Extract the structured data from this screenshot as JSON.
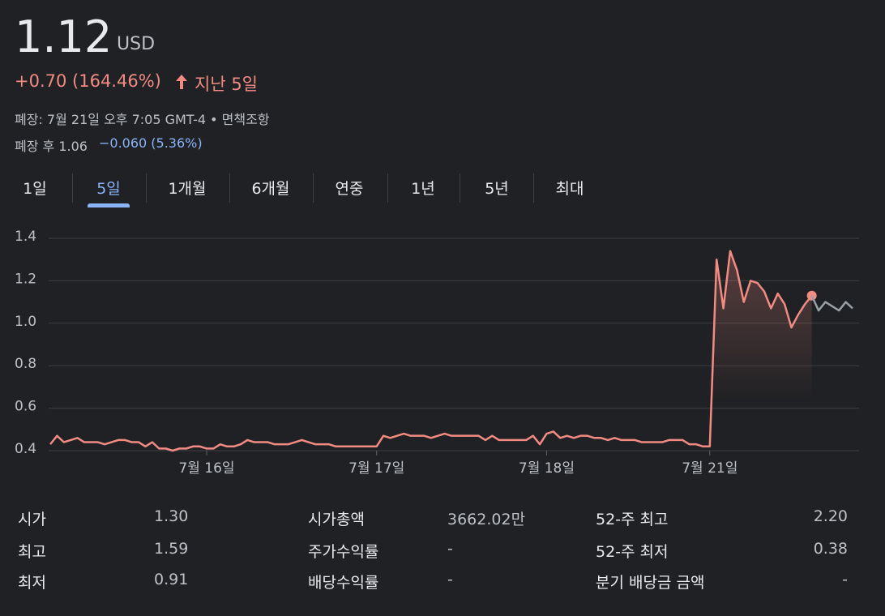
{
  "quote": {
    "price": "1.12",
    "currency": "USD",
    "change": "+0.70 (164.46%)",
    "period": "지난 5일",
    "close_note": "폐장: 7월 21일 오후 7:05 GMT-4 • 면책조항",
    "after_label": "폐장 후 1.06",
    "after_change": "−0.060 (5.36%)"
  },
  "tabs": [
    {
      "label": "1일",
      "selected": false
    },
    {
      "label": "5일",
      "selected": true
    },
    {
      "label": "1개월",
      "selected": false
    },
    {
      "label": "6개월",
      "selected": false
    },
    {
      "label": "연중",
      "selected": false
    },
    {
      "label": "1년",
      "selected": false
    },
    {
      "label": "5년",
      "selected": false
    },
    {
      "label": "최대",
      "selected": false
    }
  ],
  "chart_data": {
    "type": "line",
    "grid": true,
    "ylim": [
      0.4,
      1.4
    ],
    "yticks": [
      0.4,
      0.6,
      0.8,
      {
        "value": 1,
        "label": "1.0"
      },
      1.2,
      1.4
    ],
    "categories": [
      null,
      null,
      null,
      null,
      null,
      null,
      null,
      null,
      null,
      null,
      null,
      null,
      null,
      null,
      null,
      null,
      null,
      null,
      null,
      null,
      null,
      null,
      null,
      "7월 16일",
      null,
      null,
      null,
      null,
      null,
      null,
      null,
      null,
      null,
      null,
      null,
      null,
      null,
      null,
      null,
      null,
      null,
      null,
      null,
      null,
      null,
      null,
      null,
      null,
      "7월 17일",
      null,
      null,
      null,
      null,
      null,
      null,
      null,
      null,
      null,
      null,
      null,
      null,
      null,
      null,
      null,
      null,
      null,
      null,
      null,
      null,
      null,
      null,
      null,
      null,
      "7월 18일",
      null,
      null,
      null,
      null,
      null,
      null,
      null,
      null,
      null,
      null,
      null,
      null,
      null,
      null,
      null,
      null,
      null,
      null,
      null,
      null,
      null,
      null,
      null,
      "7월 21일",
      null,
      null,
      null,
      null,
      null,
      null,
      null,
      null,
      null,
      null,
      null,
      null,
      null,
      null,
      null,
      null,
      null,
      null,
      null,
      null,
      null
    ],
    "series": [
      {
        "color": "#f28b82",
        "values": [
          0.43,
          0.47,
          0.44,
          0.45,
          0.46,
          0.44,
          0.44,
          0.44,
          0.43,
          0.44,
          0.45,
          0.45,
          0.44,
          0.44,
          0.42,
          0.44,
          0.41,
          0.41,
          0.4,
          0.41,
          0.41,
          0.42,
          0.42,
          0.41,
          0.41,
          0.43,
          0.42,
          0.42,
          0.43,
          0.45,
          0.44,
          0.44,
          0.44,
          0.43,
          0.43,
          0.43,
          0.44,
          0.45,
          0.44,
          0.43,
          0.43,
          0.43,
          0.42,
          0.42,
          0.42,
          0.42,
          0.42,
          0.42,
          0.42,
          0.47,
          0.46,
          0.47,
          0.48,
          0.47,
          0.47,
          0.47,
          0.46,
          0.47,
          0.48,
          0.47,
          0.47,
          0.47,
          0.47,
          0.47,
          0.45,
          0.47,
          0.45,
          0.45,
          0.45,
          0.45,
          0.45,
          0.47,
          0.43,
          0.48,
          0.49,
          0.46,
          0.47,
          0.46,
          0.47,
          0.47,
          0.46,
          0.46,
          0.45,
          0.46,
          0.45,
          0.45,
          0.45,
          0.44,
          0.44,
          0.44,
          0.44,
          0.45,
          0.45,
          0.45,
          0.43,
          0.43,
          0.42,
          0.42,
          1.3,
          1.07,
          1.34,
          1.25,
          1.1,
          1.2,
          1.19,
          1.15,
          1.07,
          1.14,
          1.09,
          0.98,
          1.04,
          1.09,
          1.13,
          null,
          null,
          null,
          null,
          null,
          null
        ]
      },
      {
        "color": "#9aa0a6",
        "values": [
          null,
          null,
          null,
          null,
          null,
          null,
          null,
          null,
          null,
          null,
          null,
          null,
          null,
          null,
          null,
          null,
          null,
          null,
          null,
          null,
          null,
          null,
          null,
          null,
          null,
          null,
          null,
          null,
          null,
          null,
          null,
          null,
          null,
          null,
          null,
          null,
          null,
          null,
          null,
          null,
          null,
          null,
          null,
          null,
          null,
          null,
          null,
          null,
          null,
          null,
          null,
          null,
          null,
          null,
          null,
          null,
          null,
          null,
          null,
          null,
          null,
          null,
          null,
          null,
          null,
          null,
          null,
          null,
          null,
          null,
          null,
          null,
          null,
          null,
          null,
          null,
          null,
          null,
          null,
          null,
          null,
          null,
          null,
          null,
          null,
          null,
          null,
          null,
          null,
          null,
          null,
          null,
          null,
          null,
          null,
          null,
          null,
          null,
          null,
          null,
          null,
          null,
          null,
          null,
          null,
          null,
          null,
          null,
          null,
          null,
          null,
          null,
          1.13,
          1.06,
          1.1,
          1.08,
          1.06,
          1.1,
          1.07
        ]
      }
    ]
  },
  "stats": [
    [
      [
        "시가",
        "1.30"
      ],
      [
        "시가총액",
        "3662.02만"
      ],
      [
        "52-주 최고",
        "2.20"
      ]
    ],
    [
      [
        "최고",
        "1.59"
      ],
      [
        "주가수익률",
        "-"
      ],
      [
        "52-주 최저",
        "0.38"
      ]
    ],
    [
      [
        "최저",
        "0.91"
      ],
      [
        "배당수익률",
        "-"
      ],
      [
        "분기 배당금 금액",
        "-"
      ]
    ]
  ]
}
